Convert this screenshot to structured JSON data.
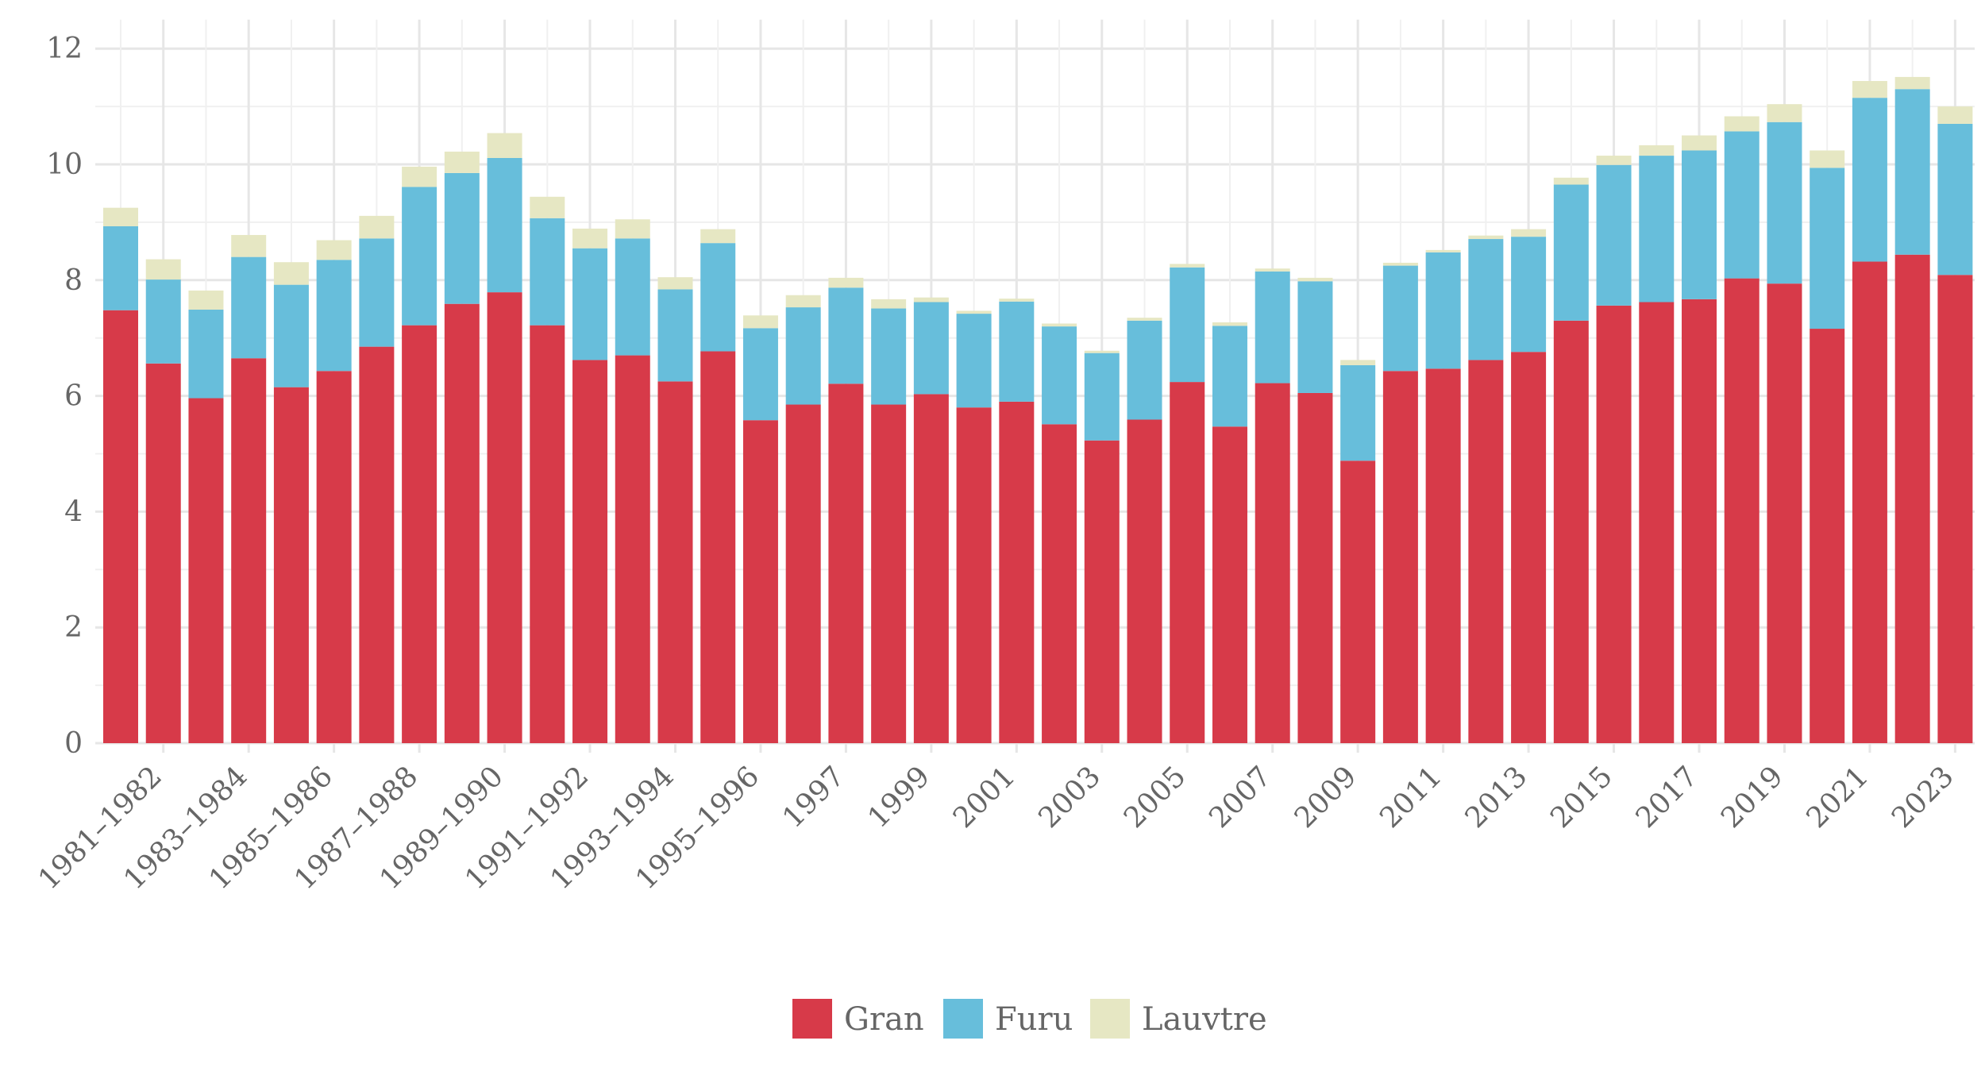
{
  "chart_data": {
    "type": "bar",
    "stacked": true,
    "title": "",
    "xlabel": "",
    "ylabel": "",
    "ylim": [
      0,
      12.5
    ],
    "yticks": [
      0,
      2,
      4,
      6,
      8,
      10,
      12
    ],
    "categories": [
      "1981",
      "1982",
      "1983",
      "1984",
      "1985",
      "1986",
      "1987",
      "1988",
      "1989",
      "1990",
      "1991",
      "1992",
      "1993",
      "1994",
      "1995",
      "1996",
      "1997",
      "1998",
      "1999",
      "2000",
      "2001",
      "2002",
      "2003",
      "2004",
      "2005",
      "2006",
      "2007",
      "2008",
      "2009",
      "2010",
      "2011",
      "2012",
      "2013",
      "2014",
      "2015",
      "2016",
      "2017",
      "2018",
      "2019",
      "2020",
      "2021",
      "2022",
      "2023",
      "2024"
    ],
    "tick_labels": [
      {
        "after_bar": 1,
        "label": "1981–1982"
      },
      {
        "after_bar": 3,
        "label": "1983–1984"
      },
      {
        "after_bar": 5,
        "label": "1985–1986"
      },
      {
        "after_bar": 7,
        "label": "1987–1988"
      },
      {
        "after_bar": 9,
        "label": "1989–1990"
      },
      {
        "after_bar": 11,
        "label": "1991–1992"
      },
      {
        "after_bar": 13,
        "label": "1993–1994"
      },
      {
        "after_bar": 15,
        "label": "1995–1996"
      },
      {
        "after_bar": 17,
        "label": "1997"
      },
      {
        "after_bar": 19,
        "label": "1999"
      },
      {
        "after_bar": 21,
        "label": "2001"
      },
      {
        "after_bar": 23,
        "label": "2003"
      },
      {
        "after_bar": 25,
        "label": "2005"
      },
      {
        "after_bar": 27,
        "label": "2007"
      },
      {
        "after_bar": 29,
        "label": "2009"
      },
      {
        "after_bar": 31,
        "label": "2011"
      },
      {
        "after_bar": 33,
        "label": "2013"
      },
      {
        "after_bar": 35,
        "label": "2015"
      },
      {
        "after_bar": 37,
        "label": "2017"
      },
      {
        "after_bar": 39,
        "label": "2019"
      },
      {
        "after_bar": 41,
        "label": "2021"
      },
      {
        "after_bar": 43,
        "label": "2023"
      }
    ],
    "series": [
      {
        "name": "Gran",
        "color": "#d73a49",
        "values": [
          7.48,
          6.56,
          5.96,
          6.65,
          6.15,
          6.43,
          6.85,
          7.22,
          7.59,
          7.79,
          7.22,
          6.62,
          6.7,
          6.25,
          6.77,
          5.58,
          5.85,
          6.21,
          5.85,
          6.03,
          5.8,
          5.9,
          5.51,
          5.23,
          5.59,
          6.24,
          5.47,
          6.22,
          6.05,
          4.88,
          6.43,
          6.47,
          6.62,
          6.76,
          7.3,
          7.56,
          7.62,
          7.67,
          8.03,
          7.94,
          7.16,
          8.32,
          8.44,
          8.09
        ]
      },
      {
        "name": "Furu",
        "color": "#67bedb",
        "values": [
          1.45,
          1.45,
          1.53,
          1.75,
          1.77,
          1.92,
          1.87,
          2.39,
          2.26,
          2.32,
          1.85,
          1.93,
          2.02,
          1.59,
          1.87,
          1.59,
          1.68,
          1.66,
          1.66,
          1.59,
          1.62,
          1.73,
          1.69,
          1.51,
          1.71,
          1.98,
          1.74,
          1.93,
          1.93,
          1.65,
          1.82,
          2.01,
          2.09,
          1.99,
          2.35,
          2.43,
          2.53,
          2.57,
          2.54,
          2.79,
          2.78,
          2.83,
          2.86,
          2.61
        ]
      },
      {
        "name": "Lauvtre",
        "color": "#e6e7c3",
        "values": [
          0.32,
          0.35,
          0.33,
          0.38,
          0.39,
          0.34,
          0.39,
          0.35,
          0.37,
          0.43,
          0.37,
          0.34,
          0.33,
          0.21,
          0.24,
          0.22,
          0.21,
          0.17,
          0.16,
          0.08,
          0.05,
          0.05,
          0.05,
          0.04,
          0.05,
          0.06,
          0.06,
          0.05,
          0.06,
          0.09,
          0.05,
          0.04,
          0.06,
          0.13,
          0.12,
          0.16,
          0.18,
          0.26,
          0.26,
          0.31,
          0.3,
          0.29,
          0.21,
          0.3
        ]
      }
    ],
    "legend": {
      "position": "bottom",
      "entries": [
        "Gran",
        "Furu",
        "Lauvtre"
      ]
    }
  }
}
